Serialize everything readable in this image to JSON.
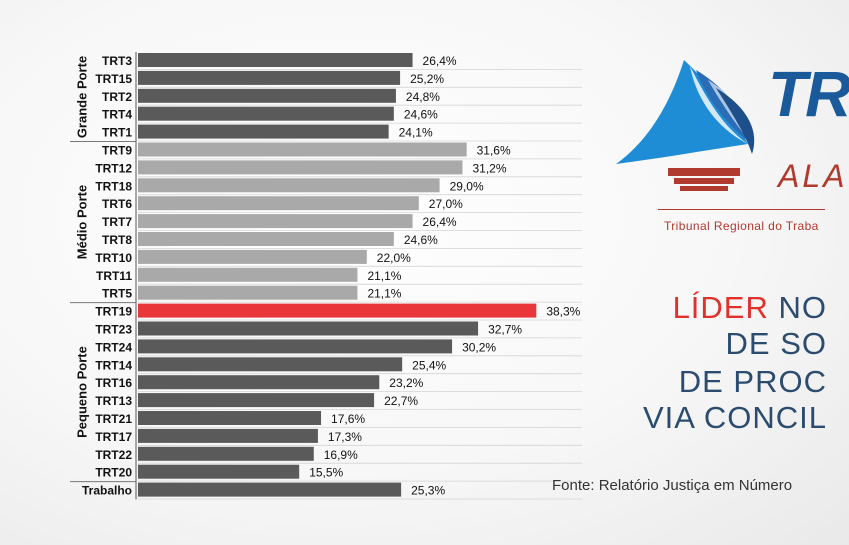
{
  "chart_data": {
    "type": "bar",
    "orientation": "horizontal",
    "unit": "%",
    "xlim": [
      0,
      40
    ],
    "groups": [
      {
        "name": "Grande Porte",
        "start": 0,
        "end": 4
      },
      {
        "name": "Médio Porte",
        "start": 5,
        "end": 13
      },
      {
        "name": "Pequeno Porte",
        "start": 14,
        "end": 23
      }
    ],
    "categories": [
      "TRT3",
      "TRT15",
      "TRT2",
      "TRT4",
      "TRT1",
      "TRT9",
      "TRT12",
      "TRT18",
      "TRT6",
      "TRT7",
      "TRT8",
      "TRT10",
      "TRT11",
      "TRT5",
      "TRT19",
      "TRT23",
      "TRT24",
      "TRT14",
      "TRT16",
      "TRT13",
      "TRT21",
      "TRT17",
      "TRT22",
      "TRT20",
      "Trabalho"
    ],
    "values": [
      26.4,
      25.2,
      24.8,
      24.6,
      24.1,
      31.6,
      31.2,
      29.0,
      27.0,
      26.4,
      24.6,
      22.0,
      21.1,
      21.1,
      38.3,
      32.7,
      30.2,
      25.4,
      23.2,
      22.7,
      17.6,
      17.3,
      16.9,
      15.5,
      25.3
    ],
    "value_labels": [
      "26,4%",
      "25,2%",
      "24,8%",
      "24,6%",
      "24,1%",
      "31,6%",
      "31,2%",
      "29,0%",
      "27,0%",
      "26,4%",
      "24,6%",
      "22,0%",
      "21,1%",
      "21,1%",
      "38,3%",
      "32,7%",
      "30,2%",
      "25,4%",
      "23,2%",
      "22,7%",
      "17,6%",
      "17,3%",
      "16,9%",
      "15,5%",
      "25,3%"
    ],
    "highlight": "TRT19",
    "colors": {
      "large": "#5a5a5a",
      "medium": "#a9a9a9",
      "small": "#5a5a5a",
      "highlight": "#e8363b",
      "total": "#5a5a5a"
    }
  },
  "logo": {
    "title_partial": "TR",
    "subtitle_partial": "ALA",
    "tagline": "Tribunal Regional do Traba"
  },
  "headline": {
    "line1_red": "LÍDER",
    "line1_rest": " NO",
    "line2": "DE SO",
    "line3": "DE PROC",
    "line4": "VIA CONCIL"
  },
  "source": "Fonte: Relatório Justiça em Número"
}
